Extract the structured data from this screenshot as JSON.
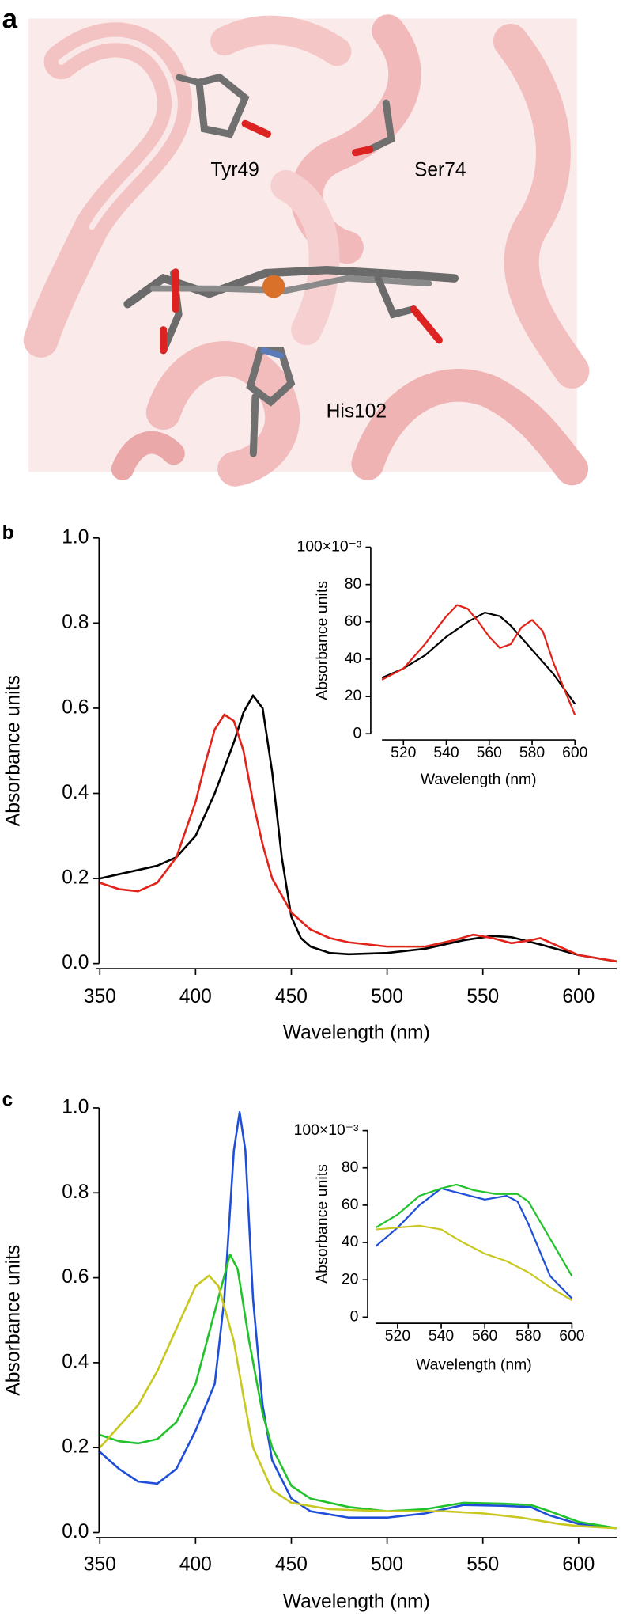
{
  "structure": {
    "panel_label": "a",
    "residues": [
      "Tyr49",
      "Ser74",
      "His102"
    ]
  },
  "chart_data": [
    {
      "type": "line",
      "panel_label": "b",
      "xlabel": "Wavelength (nm)",
      "ylabel": "Absorbance units",
      "xlim": [
        348,
        620
      ],
      "ylim": [
        0,
        1.0
      ],
      "xticks": [
        350,
        400,
        450,
        500,
        550,
        600
      ],
      "yticks": [
        {
          "value": 0,
          "label": "0.0"
        },
        0.2,
        0.4,
        0.6,
        0.8,
        {
          "value": 1,
          "label": "1.0"
        }
      ],
      "series": [
        {
          "color": "#000000",
          "x": [
            350,
            360,
            370,
            380,
            390,
            400,
            410,
            420,
            425,
            430,
            435,
            440,
            445,
            450,
            455,
            460,
            470,
            480,
            500,
            520,
            540,
            555,
            565,
            580,
            600,
            620
          ],
          "values": [
            0.2,
            0.21,
            0.22,
            0.23,
            0.25,
            0.3,
            0.4,
            0.52,
            0.59,
            0.63,
            0.6,
            0.45,
            0.25,
            0.11,
            0.06,
            0.04,
            0.025,
            0.022,
            0.025,
            0.035,
            0.055,
            0.065,
            0.062,
            0.045,
            0.02,
            0.005
          ]
        },
        {
          "color": "#e2231a",
          "x": [
            350,
            360,
            370,
            380,
            390,
            400,
            405,
            410,
            415,
            420,
            425,
            430,
            435,
            440,
            450,
            460,
            470,
            480,
            500,
            520,
            535,
            545,
            555,
            565,
            575,
            580,
            590,
            600,
            620
          ],
          "values": [
            0.19,
            0.175,
            0.17,
            0.19,
            0.25,
            0.38,
            0.47,
            0.55,
            0.585,
            0.57,
            0.5,
            0.38,
            0.28,
            0.2,
            0.12,
            0.08,
            0.06,
            0.05,
            0.04,
            0.04,
            0.055,
            0.068,
            0.06,
            0.048,
            0.055,
            0.06,
            0.04,
            0.02,
            0.005
          ]
        }
      ]
    },
    {
      "type": "line",
      "xlabel": "Wavelength (nm)",
      "ylabel": "Absorbance units",
      "xlim": [
        510,
        600
      ],
      "ylim": [
        0,
        100
      ],
      "xticks": [
        520,
        540,
        560,
        580,
        600
      ],
      "yticks": [
        0,
        20,
        40,
        60,
        80,
        {
          "value": 100,
          "label": "100×10⁻³"
        }
      ],
      "series": [
        {
          "color": "#000000",
          "x": [
            510,
            520,
            530,
            540,
            550,
            558,
            565,
            570,
            580,
            590,
            600
          ],
          "values": [
            30,
            35,
            42,
            52,
            60,
            65,
            63,
            58,
            45,
            32,
            16
          ]
        },
        {
          "color": "#e2231a",
          "x": [
            510,
            520,
            530,
            540,
            545,
            550,
            555,
            560,
            565,
            570,
            575,
            580,
            585,
            590,
            600
          ],
          "values": [
            29,
            35,
            48,
            63,
            69,
            67,
            60,
            52,
            46,
            48,
            57,
            61,
            55,
            38,
            10
          ]
        }
      ]
    },
    {
      "type": "line",
      "panel_label": "c",
      "xlabel": "Wavelength (nm)",
      "ylabel": "Absorbance units",
      "xlim": [
        348,
        620
      ],
      "ylim": [
        0,
        1.0
      ],
      "xticks": [
        350,
        400,
        450,
        500,
        550,
        600
      ],
      "yticks": [
        {
          "value": 0,
          "label": "0.0"
        },
        0.2,
        0.4,
        0.6,
        0.8,
        {
          "value": 1,
          "label": "1.0"
        }
      ],
      "series": [
        {
          "color": "#1f4fd8",
          "x": [
            350,
            360,
            370,
            380,
            390,
            400,
            410,
            415,
            420,
            423,
            426,
            430,
            435,
            440,
            450,
            460,
            480,
            500,
            520,
            540,
            560,
            575,
            585,
            600,
            620
          ],
          "values": [
            0.19,
            0.15,
            0.12,
            0.115,
            0.15,
            0.24,
            0.35,
            0.55,
            0.9,
            0.99,
            0.9,
            0.55,
            0.3,
            0.17,
            0.08,
            0.05,
            0.035,
            0.035,
            0.045,
            0.065,
            0.063,
            0.06,
            0.04,
            0.02,
            0.01
          ]
        },
        {
          "color": "#22c32a",
          "x": [
            350,
            360,
            370,
            380,
            390,
            400,
            410,
            418,
            422,
            428,
            435,
            440,
            450,
            460,
            480,
            500,
            520,
            540,
            560,
            575,
            585,
            600,
            620
          ],
          "values": [
            0.23,
            0.215,
            0.21,
            0.22,
            0.26,
            0.35,
            0.52,
            0.655,
            0.62,
            0.45,
            0.28,
            0.2,
            0.11,
            0.08,
            0.06,
            0.05,
            0.055,
            0.07,
            0.068,
            0.065,
            0.05,
            0.025,
            0.01
          ]
        },
        {
          "color": "#c8c820",
          "x": [
            350,
            360,
            370,
            380,
            390,
            400,
            407,
            412,
            420,
            425,
            430,
            440,
            450,
            470,
            500,
            530,
            550,
            570,
            590,
            600,
            620
          ],
          "values": [
            0.2,
            0.25,
            0.3,
            0.38,
            0.48,
            0.58,
            0.605,
            0.58,
            0.45,
            0.32,
            0.2,
            0.1,
            0.07,
            0.055,
            0.05,
            0.05,
            0.045,
            0.035,
            0.02,
            0.015,
            0.01
          ]
        }
      ]
    },
    {
      "type": "line",
      "xlabel": "Wavelength (nm)",
      "ylabel": "Absorbance units",
      "xlim": [
        510,
        600
      ],
      "ylim": [
        0,
        100
      ],
      "xticks": [
        520,
        540,
        560,
        580,
        600
      ],
      "yticks": [
        0,
        20,
        40,
        60,
        80,
        {
          "value": 100,
          "label": "100×10⁻³"
        }
      ],
      "series": [
        {
          "color": "#1f4fd8",
          "x": [
            510,
            520,
            530,
            540,
            550,
            560,
            570,
            575,
            580,
            590,
            600
          ],
          "values": [
            38,
            48,
            60,
            69,
            66,
            63,
            65,
            62,
            50,
            22,
            10
          ]
        },
        {
          "color": "#22c32a",
          "x": [
            510,
            520,
            530,
            540,
            547,
            555,
            565,
            575,
            580,
            590,
            600
          ],
          "values": [
            48,
            55,
            65,
            69,
            71,
            68,
            66,
            66,
            62,
            42,
            22
          ]
        },
        {
          "color": "#c8c820",
          "x": [
            510,
            520,
            530,
            540,
            550,
            560,
            570,
            580,
            590,
            600
          ],
          "values": [
            47,
            48,
            49,
            47,
            40,
            34,
            30,
            24,
            16,
            9
          ]
        }
      ]
    }
  ]
}
